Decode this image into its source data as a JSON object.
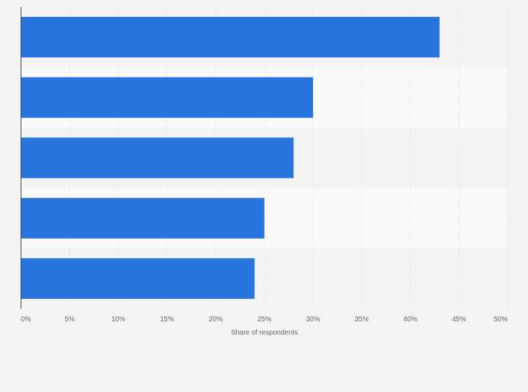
{
  "chart_data": {
    "type": "bar",
    "orientation": "horizontal",
    "categories": [
      "",
      "",
      "",
      "",
      ""
    ],
    "values": [
      43,
      30,
      28,
      25,
      24
    ],
    "value_unit": "%",
    "xlabel": "Share of respondents",
    "xlim": [
      0,
      50
    ],
    "x_ticks": [
      "0%",
      "5%",
      "10%",
      "15%",
      "20%",
      "25%",
      "30%",
      "35%",
      "40%",
      "45%",
      "50%"
    ],
    "grid": true,
    "bar_color": "#2876dd",
    "band_colors": [
      "#f3f3f3",
      "#f9f9f9"
    ]
  }
}
